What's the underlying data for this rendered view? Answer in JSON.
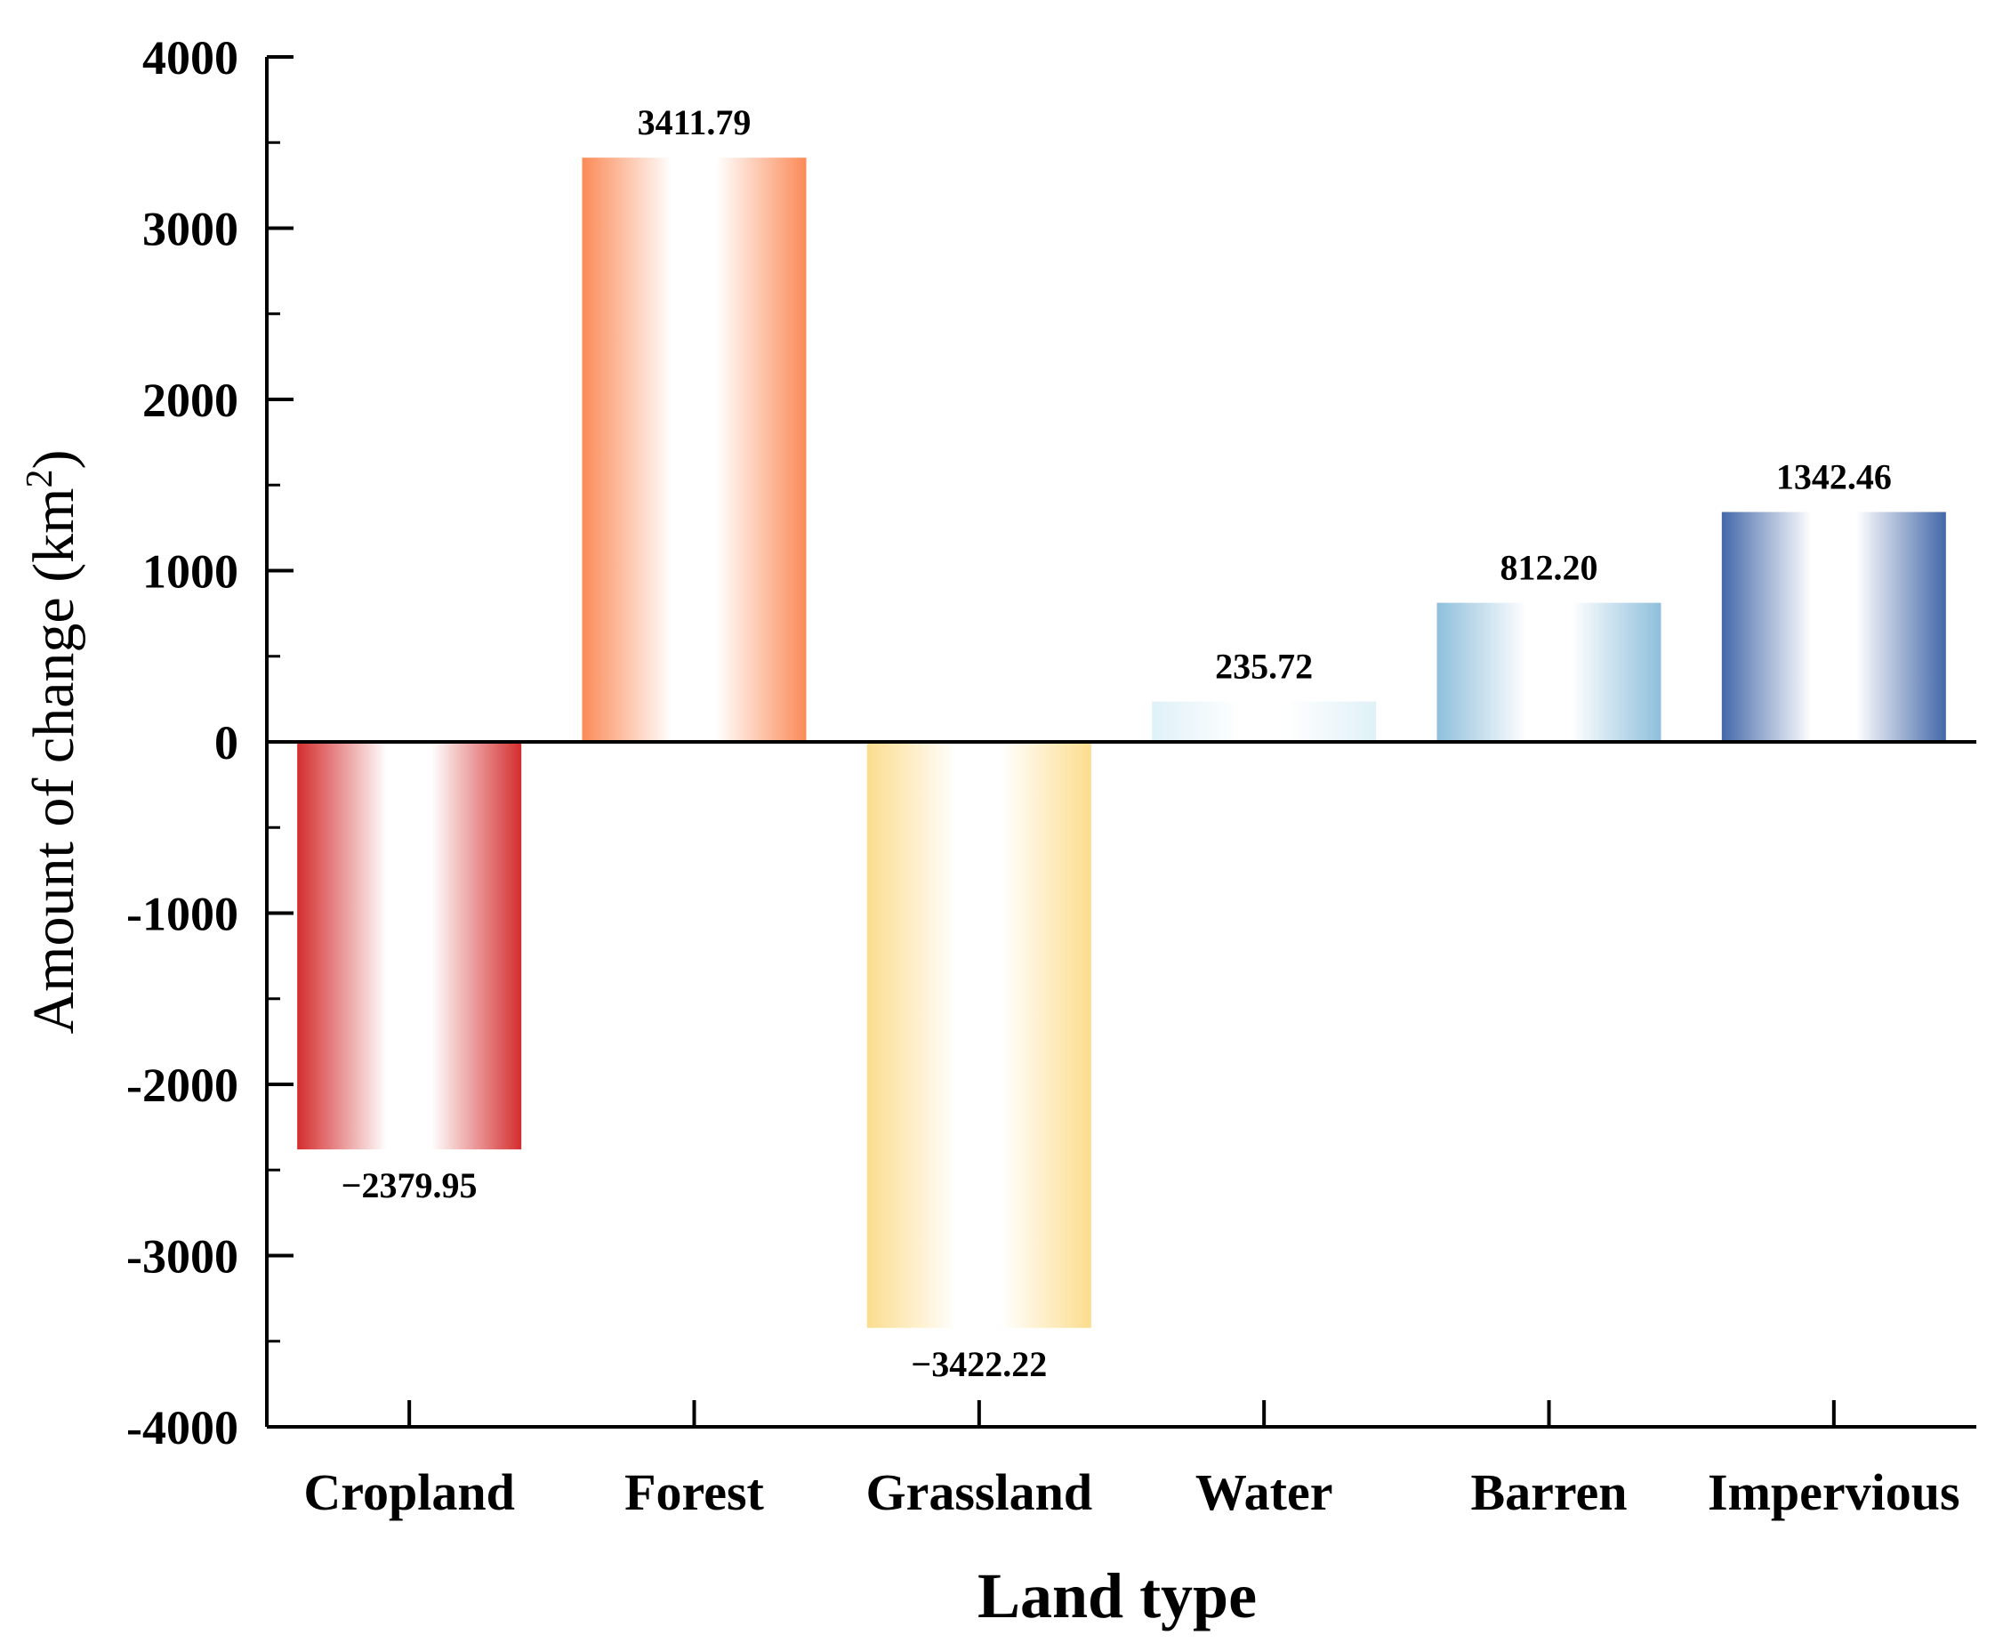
{
  "chart_data": {
    "type": "bar",
    "title": "",
    "xlabel": "Land type",
    "ylabel_main": "Amount of change (km",
    "ylabel_sup": "2",
    "ylabel_close": ")",
    "ylabel": "Amount of change (km²)",
    "categories": [
      "Cropland",
      "Forest",
      "Grassland",
      "Water",
      "Barren",
      "Impervious"
    ],
    "values": [
      -2379.95,
      3411.79,
      -3422.22,
      235.72,
      812.2,
      1342.46
    ],
    "value_labels": [
      "−2379.95",
      "3411.79",
      "−3422.22",
      "235.72",
      "812.20",
      "1342.46"
    ],
    "colors": [
      "#d42d2e",
      "#fb8a57",
      "#fcdd8e",
      "#dff1f8",
      "#8ebfdc",
      "#4368a9"
    ],
    "ylim": [
      -4000,
      4000
    ],
    "yticks": [
      4000,
      3000,
      2000,
      1000,
      0,
      -1000,
      -2000,
      -3000,
      -4000
    ],
    "ytick_labels": [
      "4000",
      "3000",
      "2000",
      "1000",
      "0",
      "-1000",
      "-2000",
      "-3000",
      "-4000"
    ],
    "grid": false,
    "legend": "none"
  }
}
